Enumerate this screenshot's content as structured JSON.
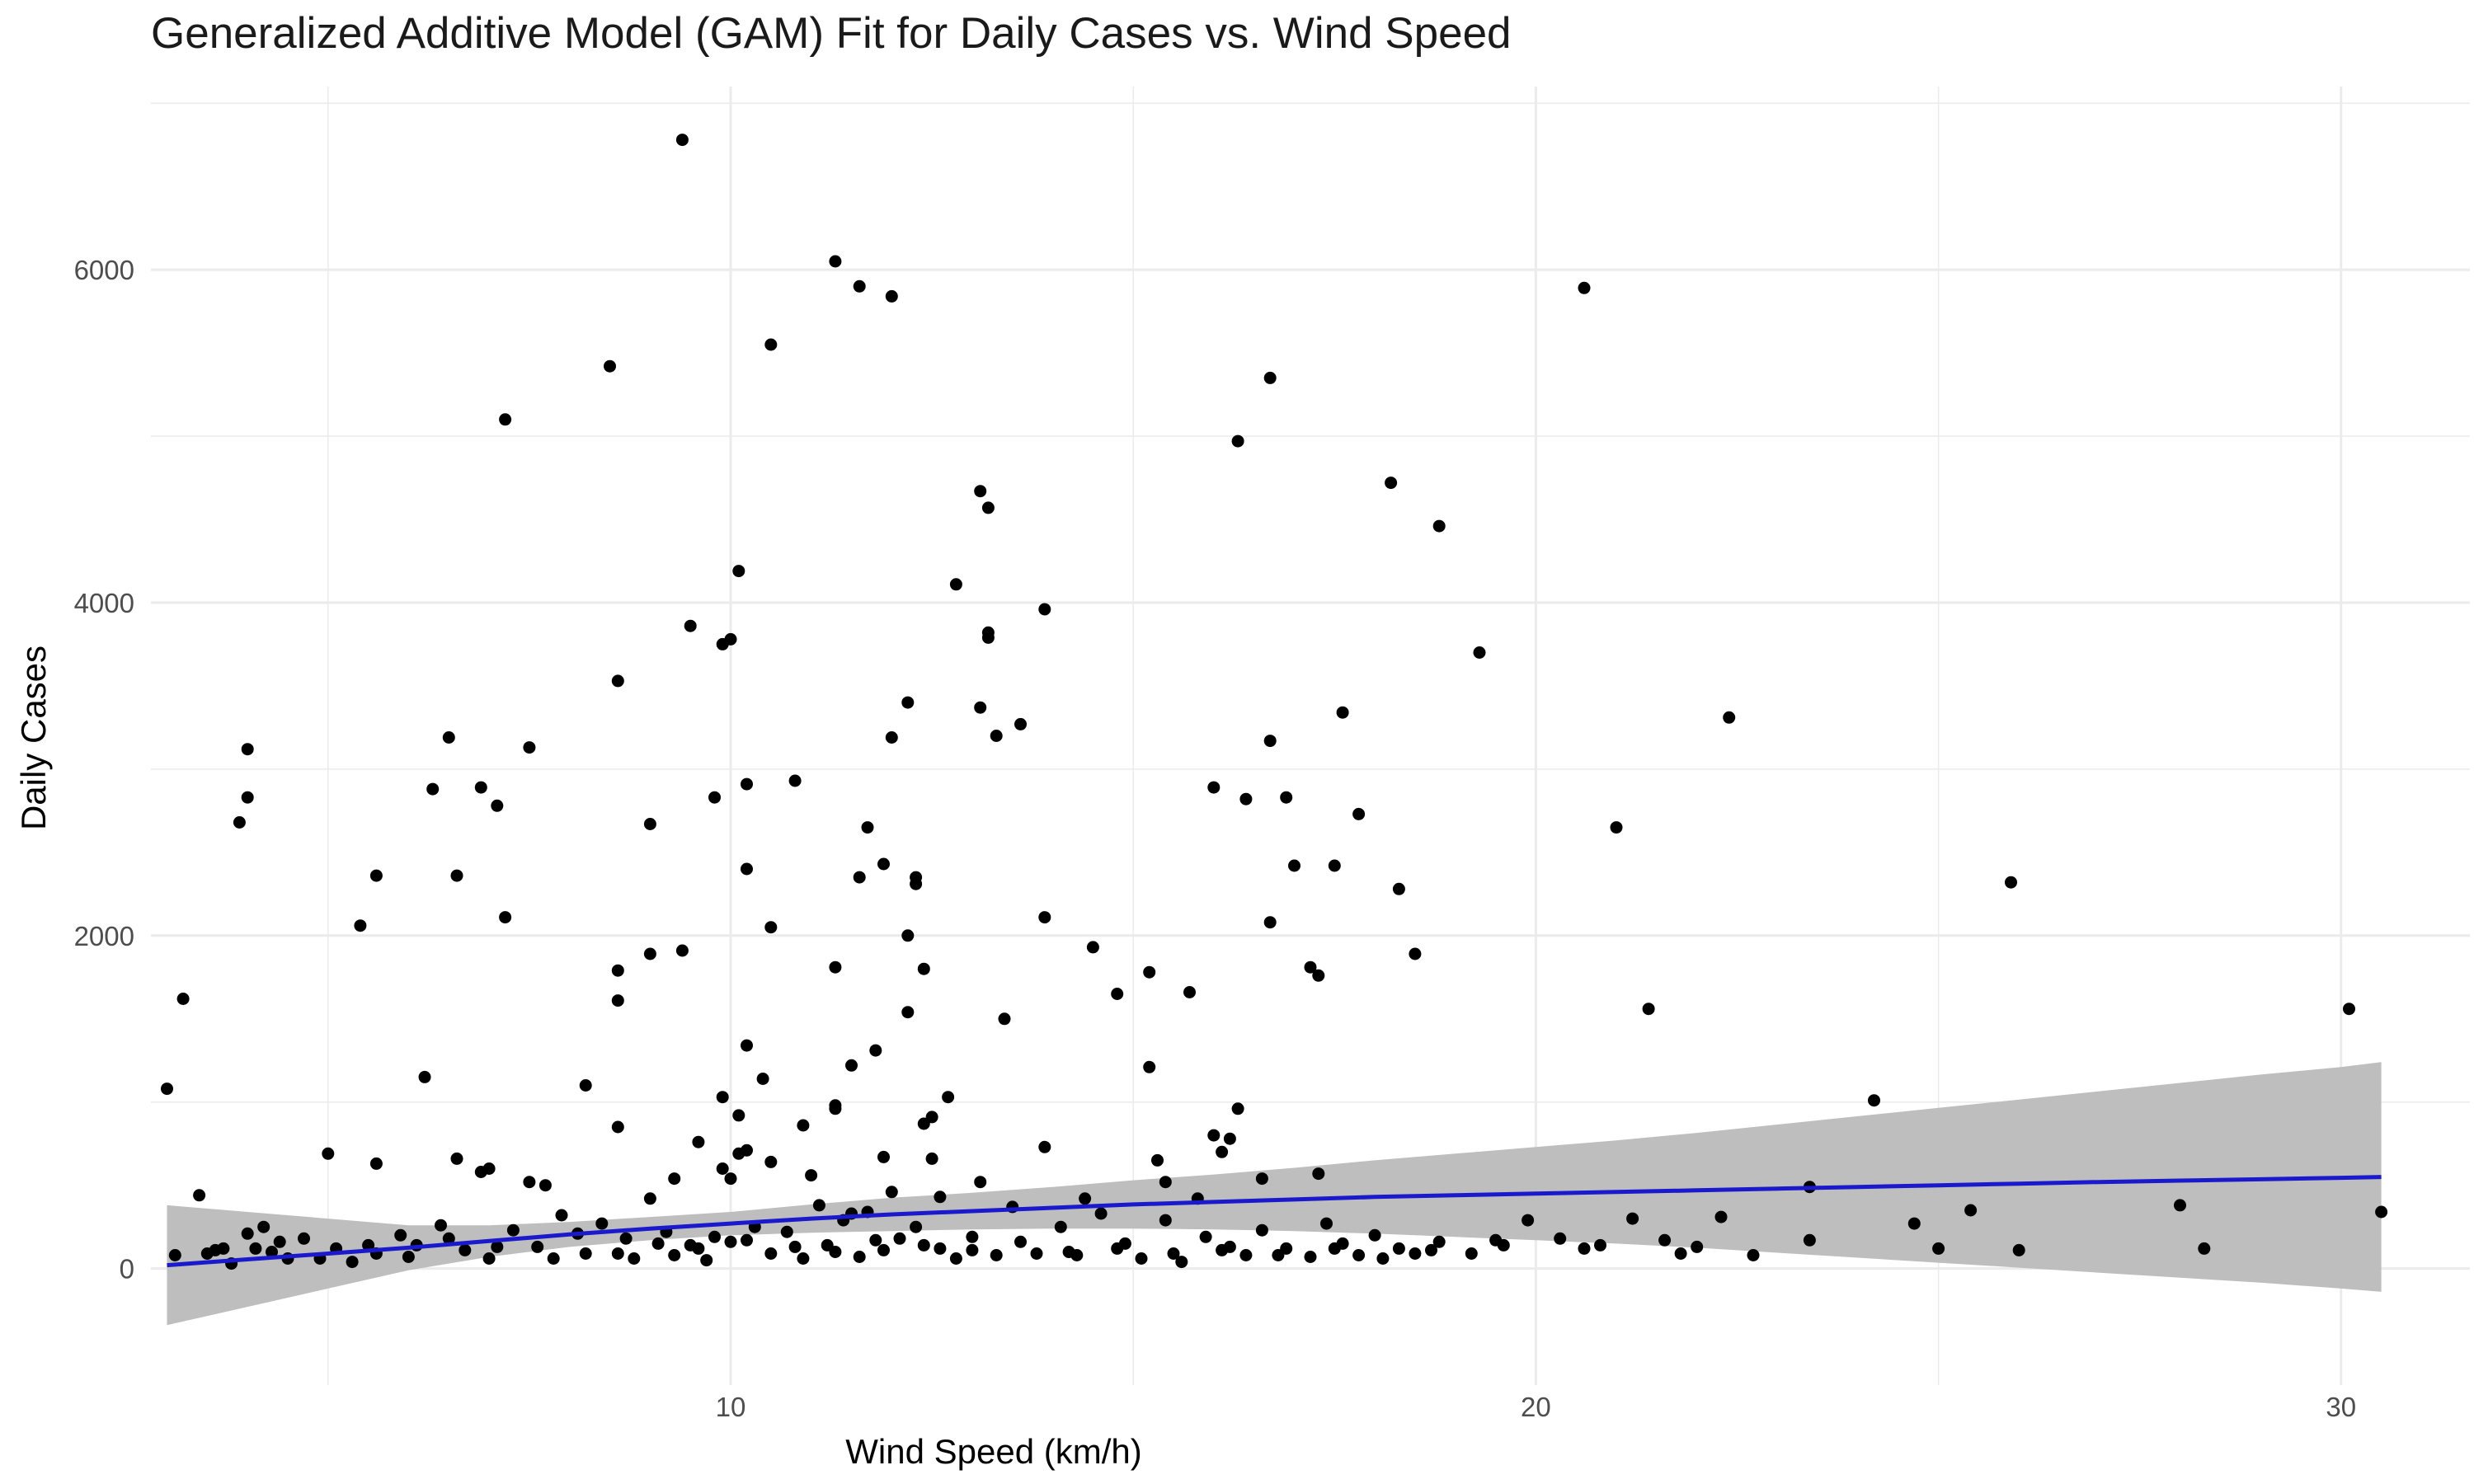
{
  "chart_data": {
    "type": "scatter",
    "title": "Generalized Additive Model (GAM) Fit for Daily Cases vs. Wind Speed",
    "xlabel": "Wind Speed (km/h)",
    "ylabel": "Daily Cases",
    "xlim": [
      2.8,
      31.6
    ],
    "ylim": [
      -700,
      7100
    ],
    "x_ticks": [
      10,
      20,
      30
    ],
    "y_ticks": [
      0,
      2000,
      4000,
      6000
    ],
    "grid": true,
    "colors": {
      "points": "#000000",
      "fit_line": "#1a1acc",
      "confidence_band": "#bebebe",
      "grid": "#ebebeb"
    },
    "fit": {
      "x": [
        3.0,
        4.0,
        5.0,
        6.0,
        7.0,
        8.0,
        9.0,
        10.0,
        11.0,
        12.0,
        13.0,
        14.0,
        15.0,
        16.0,
        17.0,
        18.0,
        19.0,
        20.0,
        21.0,
        22.0,
        23.0,
        24.0,
        25.0,
        26.0,
        27.0,
        28.0,
        29.0,
        30.0,
        30.5
      ],
      "y": [
        20,
        55,
        90,
        125,
        165,
        205,
        240,
        270,
        300,
        325,
        345,
        365,
        385,
        400,
        415,
        430,
        440,
        450,
        460,
        470,
        480,
        490,
        500,
        510,
        520,
        528,
        536,
        545,
        550
      ],
      "lower": [
        -340,
        -230,
        -120,
        -10,
        70,
        130,
        170,
        200,
        215,
        225,
        235,
        240,
        240,
        235,
        225,
        210,
        190,
        170,
        150,
        125,
        95,
        65,
        35,
        5,
        -25,
        -55,
        -85,
        -120,
        -140
      ],
      "upper": [
        380,
        340,
        300,
        260,
        260,
        280,
        310,
        340,
        385,
        425,
        455,
        490,
        530,
        565,
        605,
        650,
        690,
        730,
        770,
        815,
        865,
        915,
        965,
        1015,
        1065,
        1115,
        1165,
        1210,
        1240
      ]
    },
    "points": [
      [
        9.4,
        6780
      ],
      [
        11.3,
        6050
      ],
      [
        11.6,
        5900
      ],
      [
        12.0,
        5840
      ],
      [
        20.6,
        5890
      ],
      [
        10.5,
        5550
      ],
      [
        8.5,
        5420
      ],
      [
        7.2,
        5100
      ],
      [
        16.7,
        5350
      ],
      [
        16.3,
        4970
      ],
      [
        18.2,
        4720
      ],
      [
        18.8,
        4460
      ],
      [
        13.1,
        4670
      ],
      [
        13.2,
        4570
      ],
      [
        10.1,
        4190
      ],
      [
        12.8,
        4110
      ],
      [
        13.9,
        3960
      ],
      [
        9.5,
        3860
      ],
      [
        10.0,
        3780
      ],
      [
        9.9,
        3750
      ],
      [
        13.2,
        3820
      ],
      [
        13.2,
        3790
      ],
      [
        19.3,
        3700
      ],
      [
        8.6,
        3530
      ],
      [
        12.2,
        3400
      ],
      [
        13.1,
        3370
      ],
      [
        13.6,
        3270
      ],
      [
        13.3,
        3200
      ],
      [
        12.0,
        3190
      ],
      [
        17.6,
        3340
      ],
      [
        22.4,
        3310
      ],
      [
        16.7,
        3170
      ],
      [
        6.5,
        3190
      ],
      [
        7.5,
        3130
      ],
      [
        4.0,
        3120
      ],
      [
        4.0,
        2830
      ],
      [
        3.9,
        2680
      ],
      [
        6.3,
        2880
      ],
      [
        6.9,
        2890
      ],
      [
        7.1,
        2780
      ],
      [
        9.8,
        2830
      ],
      [
        10.2,
        2910
      ],
      [
        10.8,
        2930
      ],
      [
        9.0,
        2670
      ],
      [
        11.7,
        2650
      ],
      [
        16.0,
        2890
      ],
      [
        16.4,
        2820
      ],
      [
        16.9,
        2830
      ],
      [
        17.8,
        2730
      ],
      [
        21.0,
        2650
      ],
      [
        5.6,
        2360
      ],
      [
        6.6,
        2360
      ],
      [
        11.9,
        2430
      ],
      [
        12.3,
        2350
      ],
      [
        12.3,
        2310
      ],
      [
        11.6,
        2350
      ],
      [
        10.2,
        2400
      ],
      [
        17.0,
        2420
      ],
      [
        17.5,
        2420
      ],
      [
        18.3,
        2280
      ],
      [
        7.2,
        2110
      ],
      [
        5.4,
        2060
      ],
      [
        10.5,
        2050
      ],
      [
        12.2,
        2000
      ],
      [
        13.9,
        2110
      ],
      [
        16.7,
        2080
      ],
      [
        25.9,
        2320
      ],
      [
        9.0,
        1890
      ],
      [
        9.4,
        1910
      ],
      [
        8.6,
        1790
      ],
      [
        11.3,
        1810
      ],
      [
        12.4,
        1800
      ],
      [
        14.5,
        1930
      ],
      [
        15.2,
        1780
      ],
      [
        17.2,
        1810
      ],
      [
        17.3,
        1760
      ],
      [
        18.5,
        1890
      ],
      [
        8.6,
        1610
      ],
      [
        3.2,
        1620
      ],
      [
        15.7,
        1660
      ],
      [
        14.8,
        1650
      ],
      [
        13.4,
        1500
      ],
      [
        12.2,
        1540
      ],
      [
        21.4,
        1560
      ],
      [
        30.1,
        1560
      ],
      [
        10.2,
        1340
      ],
      [
        11.8,
        1310
      ],
      [
        11.5,
        1220
      ],
      [
        15.2,
        1210
      ],
      [
        6.2,
        1150
      ],
      [
        10.4,
        1140
      ],
      [
        3.0,
        1080
      ],
      [
        8.2,
        1100
      ],
      [
        9.9,
        1030
      ],
      [
        12.7,
        1030
      ],
      [
        11.3,
        980
      ],
      [
        11.3,
        960
      ],
      [
        10.9,
        860
      ],
      [
        8.6,
        850
      ],
      [
        12.4,
        870
      ],
      [
        16.3,
        960
      ],
      [
        16.0,
        800
      ],
      [
        16.2,
        780
      ],
      [
        24.2,
        1010
      ],
      [
        10.1,
        920
      ],
      [
        12.5,
        910
      ],
      [
        13.9,
        730
      ],
      [
        9.6,
        760
      ],
      [
        10.1,
        690
      ],
      [
        10.2,
        710
      ],
      [
        10.5,
        640
      ],
      [
        11.0,
        560
      ],
      [
        11.9,
        670
      ],
      [
        12.5,
        660
      ],
      [
        15.3,
        650
      ],
      [
        16.1,
        700
      ],
      [
        17.3,
        570
      ],
      [
        16.6,
        540
      ],
      [
        5.0,
        690
      ],
      [
        5.6,
        630
      ],
      [
        6.6,
        660
      ],
      [
        6.9,
        580
      ],
      [
        7.0,
        600
      ],
      [
        7.5,
        520
      ],
      [
        7.7,
        500
      ],
      [
        9.3,
        540
      ],
      [
        9.9,
        600
      ],
      [
        10.0,
        540
      ],
      [
        12.0,
        460
      ],
      [
        13.1,
        520
      ],
      [
        15.4,
        520
      ],
      [
        3.4,
        440
      ],
      [
        23.4,
        490
      ],
      [
        3.5,
        90
      ],
      [
        3.7,
        120
      ],
      [
        3.8,
        30
      ],
      [
        4.0,
        210
      ],
      [
        4.1,
        120
      ],
      [
        4.2,
        250
      ],
      [
        4.4,
        160
      ],
      [
        4.5,
        60
      ],
      [
        4.7,
        180
      ],
      [
        5.1,
        120
      ],
      [
        5.3,
        40
      ],
      [
        5.6,
        90
      ],
      [
        5.9,
        200
      ],
      [
        6.1,
        140
      ],
      [
        6.4,
        260
      ],
      [
        6.7,
        110
      ],
      [
        7.0,
        60
      ],
      [
        7.3,
        230
      ],
      [
        7.6,
        130
      ],
      [
        7.9,
        320
      ],
      [
        8.2,
        90
      ],
      [
        8.4,
        270
      ],
      [
        8.7,
        180
      ],
      [
        8.8,
        60
      ],
      [
        9.0,
        420
      ],
      [
        9.2,
        220
      ],
      [
        9.3,
        80
      ],
      [
        9.5,
        140
      ],
      [
        9.7,
        50
      ],
      [
        9.8,
        190
      ],
      [
        10.0,
        160
      ],
      [
        10.3,
        250
      ],
      [
        10.5,
        90
      ],
      [
        10.7,
        220
      ],
      [
        10.9,
        60
      ],
      [
        11.1,
        380
      ],
      [
        11.2,
        140
      ],
      [
        11.4,
        290
      ],
      [
        11.6,
        70
      ],
      [
        11.7,
        340
      ],
      [
        11.9,
        110
      ],
      [
        12.1,
        180
      ],
      [
        12.3,
        250
      ],
      [
        12.6,
        120
      ],
      [
        12.8,
        60
      ],
      [
        13.0,
        190
      ],
      [
        13.3,
        80
      ],
      [
        13.5,
        370
      ],
      [
        13.8,
        90
      ],
      [
        14.1,
        250
      ],
      [
        14.3,
        80
      ],
      [
        14.6,
        330
      ],
      [
        14.8,
        120
      ],
      [
        15.1,
        60
      ],
      [
        15.4,
        290
      ],
      [
        15.6,
        40
      ],
      [
        15.9,
        190
      ],
      [
        16.1,
        110
      ],
      [
        16.4,
        80
      ],
      [
        16.6,
        230
      ],
      [
        16.9,
        120
      ],
      [
        17.2,
        70
      ],
      [
        17.4,
        270
      ],
      [
        17.6,
        150
      ],
      [
        17.8,
        80
      ],
      [
        18.0,
        200
      ],
      [
        18.3,
        120
      ],
      [
        18.5,
        90
      ],
      [
        18.8,
        160
      ],
      [
        19.2,
        90
      ],
      [
        19.5,
        170
      ],
      [
        19.9,
        290
      ],
      [
        20.3,
        180
      ],
      [
        20.8,
        140
      ],
      [
        21.2,
        300
      ],
      [
        21.6,
        170
      ],
      [
        22.0,
        130
      ],
      [
        22.3,
        310
      ],
      [
        22.7,
        80
      ],
      [
        23.4,
        170
      ],
      [
        24.7,
        270
      ],
      [
        25.0,
        120
      ],
      [
        25.4,
        350
      ],
      [
        26.0,
        110
      ],
      [
        28.0,
        380
      ],
      [
        28.3,
        120
      ],
      [
        30.5,
        340
      ],
      [
        3.1,
        80
      ],
      [
        3.6,
        110
      ],
      [
        4.3,
        100
      ],
      [
        4.9,
        60
      ],
      [
        5.5,
        140
      ],
      [
        6.0,
        70
      ],
      [
        6.5,
        180
      ],
      [
        7.1,
        130
      ],
      [
        7.8,
        60
      ],
      [
        8.1,
        210
      ],
      [
        8.6,
        90
      ],
      [
        9.1,
        150
      ],
      [
        9.6,
        120
      ],
      [
        10.2,
        170
      ],
      [
        10.8,
        130
      ],
      [
        11.3,
        100
      ],
      [
        11.8,
        170
      ],
      [
        12.4,
        140
      ],
      [
        13.0,
        110
      ],
      [
        13.6,
        160
      ],
      [
        14.2,
        100
      ],
      [
        14.9,
        150
      ],
      [
        15.5,
        90
      ],
      [
        16.2,
        130
      ],
      [
        16.8,
        80
      ],
      [
        17.5,
        120
      ],
      [
        18.1,
        60
      ],
      [
        18.7,
        110
      ],
      [
        19.6,
        140
      ],
      [
        20.6,
        120
      ],
      [
        21.8,
        90
      ],
      [
        12.6,
        430
      ],
      [
        14.4,
        420
      ],
      [
        15.8,
        420
      ],
      [
        11.5,
        330
      ]
    ]
  }
}
